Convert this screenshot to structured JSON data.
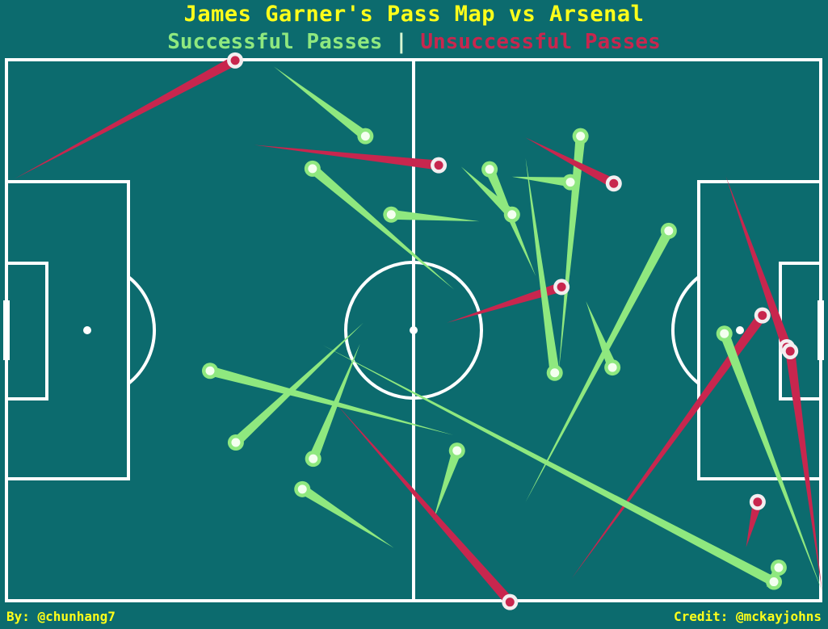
{
  "header": {
    "title": "James Garner's Pass Map vs Arsenal",
    "legend_success": "Successful Passes",
    "legend_separator": "|",
    "legend_fail": "Unsuccessful Passes"
  },
  "footer": {
    "author": "By: @chunhang7",
    "credit": "Credit: @mckayjohns"
  },
  "colors": {
    "background": "#0c6b6e",
    "lines": "#ffffff",
    "success": "#8fe87f",
    "fail": "#c8264e",
    "title": "#ffff1a"
  },
  "chart_data": {
    "type": "scatter",
    "pitch": {
      "length": 120,
      "width": 80
    },
    "grid": false,
    "passes": [
      {
        "outcome": "fail",
        "start": [
          33.7,
          79.9
        ],
        "end": [
          1.2,
          62.4
        ]
      },
      {
        "outcome": "success",
        "start": [
          52.9,
          68.7
        ],
        "end": [
          39.4,
          79.0
        ]
      },
      {
        "outcome": "fail",
        "start": [
          63.7,
          64.4
        ],
        "end": [
          36.5,
          67.4
        ]
      },
      {
        "outcome": "success",
        "start": [
          45.1,
          63.9
        ],
        "end": [
          66.0,
          46.0
        ]
      },
      {
        "outcome": "success",
        "start": [
          56.7,
          57.1
        ],
        "end": [
          69.7,
          56.1
        ]
      },
      {
        "outcome": "success",
        "start": [
          71.2,
          63.8
        ],
        "end": [
          78.0,
          48.0
        ]
      },
      {
        "outcome": "success",
        "start": [
          74.5,
          57.1
        ],
        "end": [
          67.0,
          64.2
        ]
      },
      {
        "outcome": "success",
        "start": [
          83.1,
          61.9
        ],
        "end": [
          74.5,
          62.7
        ]
      },
      {
        "outcome": "success",
        "start": [
          84.6,
          68.7
        ],
        "end": [
          81.4,
          34.0
        ]
      },
      {
        "outcome": "fail",
        "start": [
          89.5,
          61.7
        ],
        "end": [
          76.5,
          68.5
        ]
      },
      {
        "outcome": "fail",
        "start": [
          81.8,
          46.4
        ],
        "end": [
          64.9,
          41.1
        ]
      },
      {
        "outcome": "success",
        "start": [
          80.8,
          33.7
        ],
        "end": [
          76.5,
          65.5
        ]
      },
      {
        "outcome": "success",
        "start": [
          97.6,
          54.7
        ],
        "end": [
          76.5,
          14.6
        ]
      },
      {
        "outcome": "success",
        "start": [
          89.3,
          34.5
        ],
        "end": [
          85.4,
          44.3
        ]
      },
      {
        "outcome": "fail",
        "start": [
          111.4,
          42.2
        ],
        "end": [
          83.3,
          3.3
        ]
      },
      {
        "outcome": "fail",
        "start": [
          115.0,
          37.5
        ],
        "end": [
          106.0,
          62.8
        ]
      },
      {
        "outcome": "fail",
        "start": [
          115.5,
          36.9
        ],
        "end": [
          120.2,
          1.4
        ]
      },
      {
        "outcome": "success",
        "start": [
          105.8,
          39.5
        ],
        "end": [
          120.2,
          1.4
        ]
      },
      {
        "outcome": "fail",
        "start": [
          110.7,
          14.6
        ],
        "end": [
          109.0,
          7.9
        ]
      },
      {
        "outcome": "success",
        "start": [
          113.8,
          4.9
        ],
        "end": [
          112.0,
          2.0
        ]
      },
      {
        "outcome": "success",
        "start": [
          113.1,
          2.8
        ],
        "end": [
          46.6,
          37.8
        ]
      },
      {
        "outcome": "success",
        "start": [
          30.0,
          34.0
        ],
        "end": [
          65.9,
          24.5
        ]
      },
      {
        "outcome": "success",
        "start": [
          33.8,
          23.4
        ],
        "end": [
          52.6,
          41.1
        ]
      },
      {
        "outcome": "success",
        "start": [
          45.2,
          21.0
        ],
        "end": [
          52.1,
          38.0
        ]
      },
      {
        "outcome": "success",
        "start": [
          43.6,
          16.5
        ],
        "end": [
          57.1,
          7.8
        ]
      },
      {
        "outcome": "success",
        "start": [
          66.4,
          22.2
        ],
        "end": [
          62.9,
          11.9
        ]
      },
      {
        "outcome": "fail",
        "start": [
          74.2,
          -0.2
        ],
        "end": [
          48.7,
          29.0
        ]
      }
    ]
  }
}
